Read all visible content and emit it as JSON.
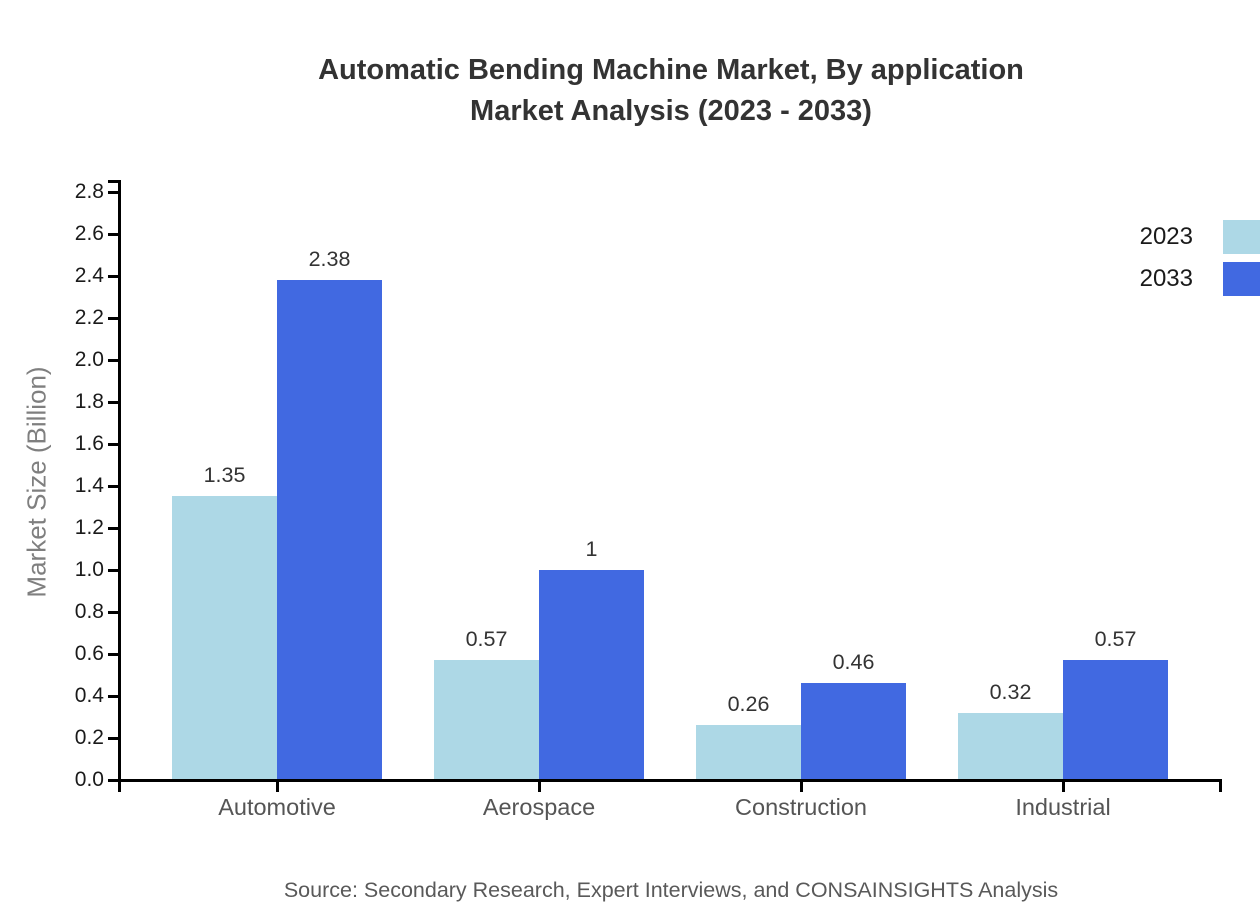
{
  "chart_data": {
    "type": "bar",
    "title_line1": "Automatic Bending Machine Market, By application",
    "title_line2": "Market Analysis (2023 - 2033)",
    "ylabel": "Market Size (Billion)",
    "categories": [
      "Automotive",
      "Aerospace",
      "Construction",
      "Industrial"
    ],
    "series": [
      {
        "name": "2023",
        "color": "#ADD8E6",
        "values": [
          1.35,
          0.57,
          0.26,
          0.32
        ]
      },
      {
        "name": "2033",
        "color": "#4169E1",
        "values": [
          2.38,
          1,
          0.46,
          0.57
        ]
      }
    ],
    "value_labels": [
      [
        "1.35",
        "0.57",
        "0.26",
        "0.32"
      ],
      [
        "2.38",
        "1",
        "0.46",
        "0.57"
      ]
    ],
    "ylim": [
      0,
      2.8
    ],
    "ytick_step": 0.2,
    "ytick_labels": [
      "0.0",
      "0.2",
      "0.4",
      "0.6",
      "0.8",
      "1.0",
      "1.2",
      "1.4",
      "1.6",
      "1.8",
      "2.0",
      "2.2",
      "2.4",
      "2.6",
      "2.8"
    ],
    "grid": false,
    "legend_position": "top-right",
    "axis_color": "#000000",
    "source": "Source: Secondary Research, Expert Interviews, and CONSAINSIGHTS Analysis"
  }
}
